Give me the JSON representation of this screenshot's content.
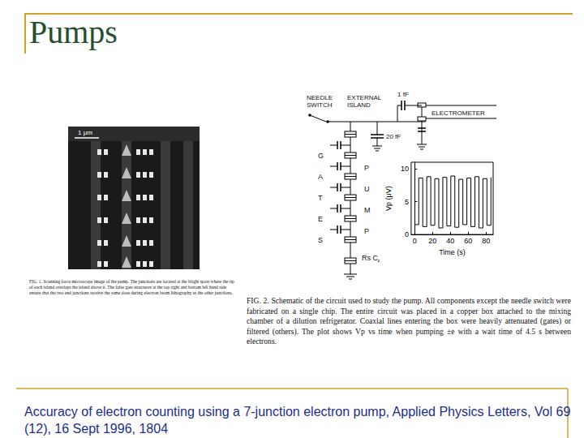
{
  "slide": {
    "title": "Pumps",
    "citation": "Accuracy of electron counting using a 7-junction electron pump, Applied Physics Letters, Vol 69 (12), 16 Sept 1996, 1804"
  },
  "figure1": {
    "scale_bar": "1 μm",
    "caption": "FIG. 1. Scanning force microscope image of the pump. The junctions are located at the bright spots where the tip of each island overlaps the island above it. The false gate structures at the top right and bottom left hand side ensure that the two end junctions receive the same dose during electron beam lithography as the other junctions."
  },
  "circuit": {
    "needle_switch": "NEEDLE SWITCH",
    "external_island": "EXTERNAL ISLAND",
    "coupling_capacitor": "1 fF",
    "island_capacitor": "20 fF",
    "electrometer": "ELECTROMETER",
    "gates": [
      "G",
      "A",
      "T",
      "E",
      "S"
    ],
    "pump": [
      "P",
      "U",
      "M",
      "P"
    ],
    "junction": "Rs Cj"
  },
  "figure2": {
    "caption": "FIG. 2. Schematic of the circuit used to study the pump. All components except the needle switch were fabricated on a single chip. The entire circuit was placed in a copper box attached to the mixing chamber of a dilution refrigerator. Coaxial lines entering the box were heavily attenuated (gates) or filtered (others). The plot shows Vp vs time when pumping ±e with a wait time of 4.5 s between electrons."
  },
  "chart_data": {
    "type": "line",
    "xlabel": "Time (s)",
    "ylabel": "Vp (μV)",
    "x": [
      0,
      4.5,
      9,
      13.5,
      18,
      22.5,
      27,
      31.5,
      36,
      40.5,
      45,
      49.5,
      54,
      58.5,
      63,
      67.5,
      72,
      76.5,
      81,
      85.5
    ],
    "values": [
      1.5,
      8.6,
      1.2,
      8.8,
      1.4,
      8.5,
      1.0,
      8.7,
      1.3,
      8.9,
      1.1,
      8.4,
      1.5,
      8.6,
      1.2,
      8.8,
      1.0,
      8.5,
      1.4,
      8.7
    ],
    "color": "#000000",
    "line_style": "solid",
    "xlim": [
      -4,
      88
    ],
    "xticks": [
      0,
      20,
      40,
      60,
      80
    ],
    "ylim": [
      0,
      11
    ],
    "yticks": [
      0,
      5,
      10
    ],
    "grid": false
  }
}
